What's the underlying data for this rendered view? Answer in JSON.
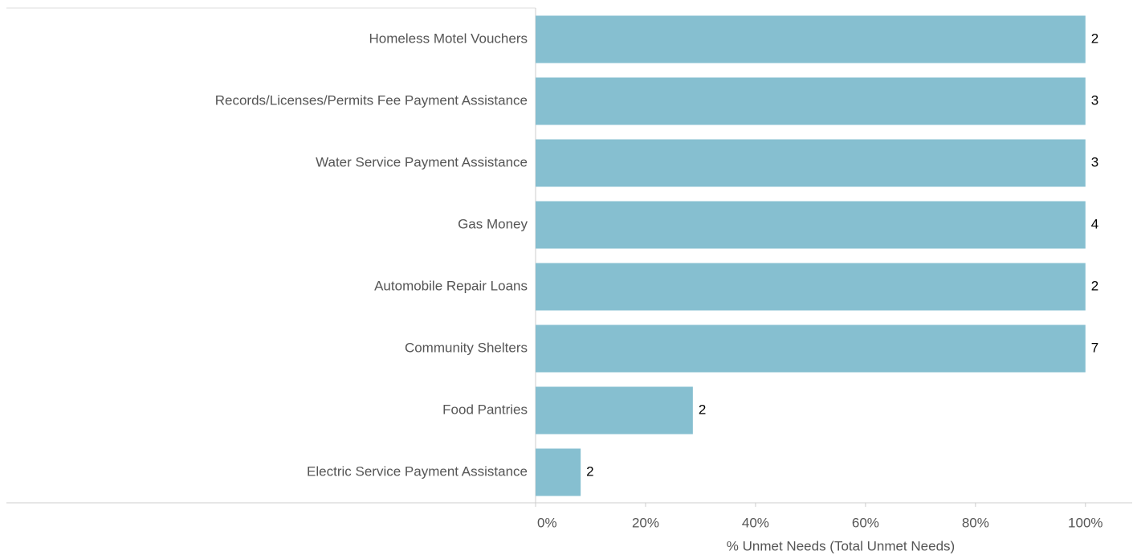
{
  "chart_data": {
    "type": "bar",
    "orientation": "horizontal",
    "categories": [
      "Homeless Motel Vouchers",
      "Records/Licenses/Permits Fee Payment Assistance",
      "Water Service Payment Assistance",
      "Gas Money",
      "Automobile Repair Loans",
      "Community Shelters",
      "Food Pantries",
      "Electric Service Payment Assistance"
    ],
    "values": [
      100,
      100,
      100,
      100,
      100,
      100,
      28.6,
      8.2
    ],
    "counts": [
      2,
      3,
      3,
      4,
      2,
      7,
      2,
      2
    ],
    "color": "#86bfd0",
    "xlabel": "% Unmet Needs (Total Unmet Needs)",
    "xlim": [
      0,
      108.5
    ],
    "xticks": [
      {
        "value": 0,
        "label": "0%"
      },
      {
        "value": 20,
        "label": "20%"
      },
      {
        "value": 40,
        "label": "40%"
      },
      {
        "value": 60,
        "label": "60%"
      },
      {
        "value": 80,
        "label": "80%"
      },
      {
        "value": 100,
        "label": "100%"
      }
    ],
    "grid": false
  }
}
